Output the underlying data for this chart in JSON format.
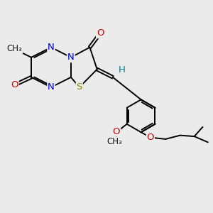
{
  "bg_color": "#ebebeb",
  "bond_color": "#000000",
  "bond_width": 1.4,
  "atom_colors": {
    "N": "#0000cc",
    "S": "#888800",
    "O": "#cc0000",
    "H": "#008080",
    "C": "#111111"
  },
  "font_size": 9.5,
  "small_font_size": 8.5
}
